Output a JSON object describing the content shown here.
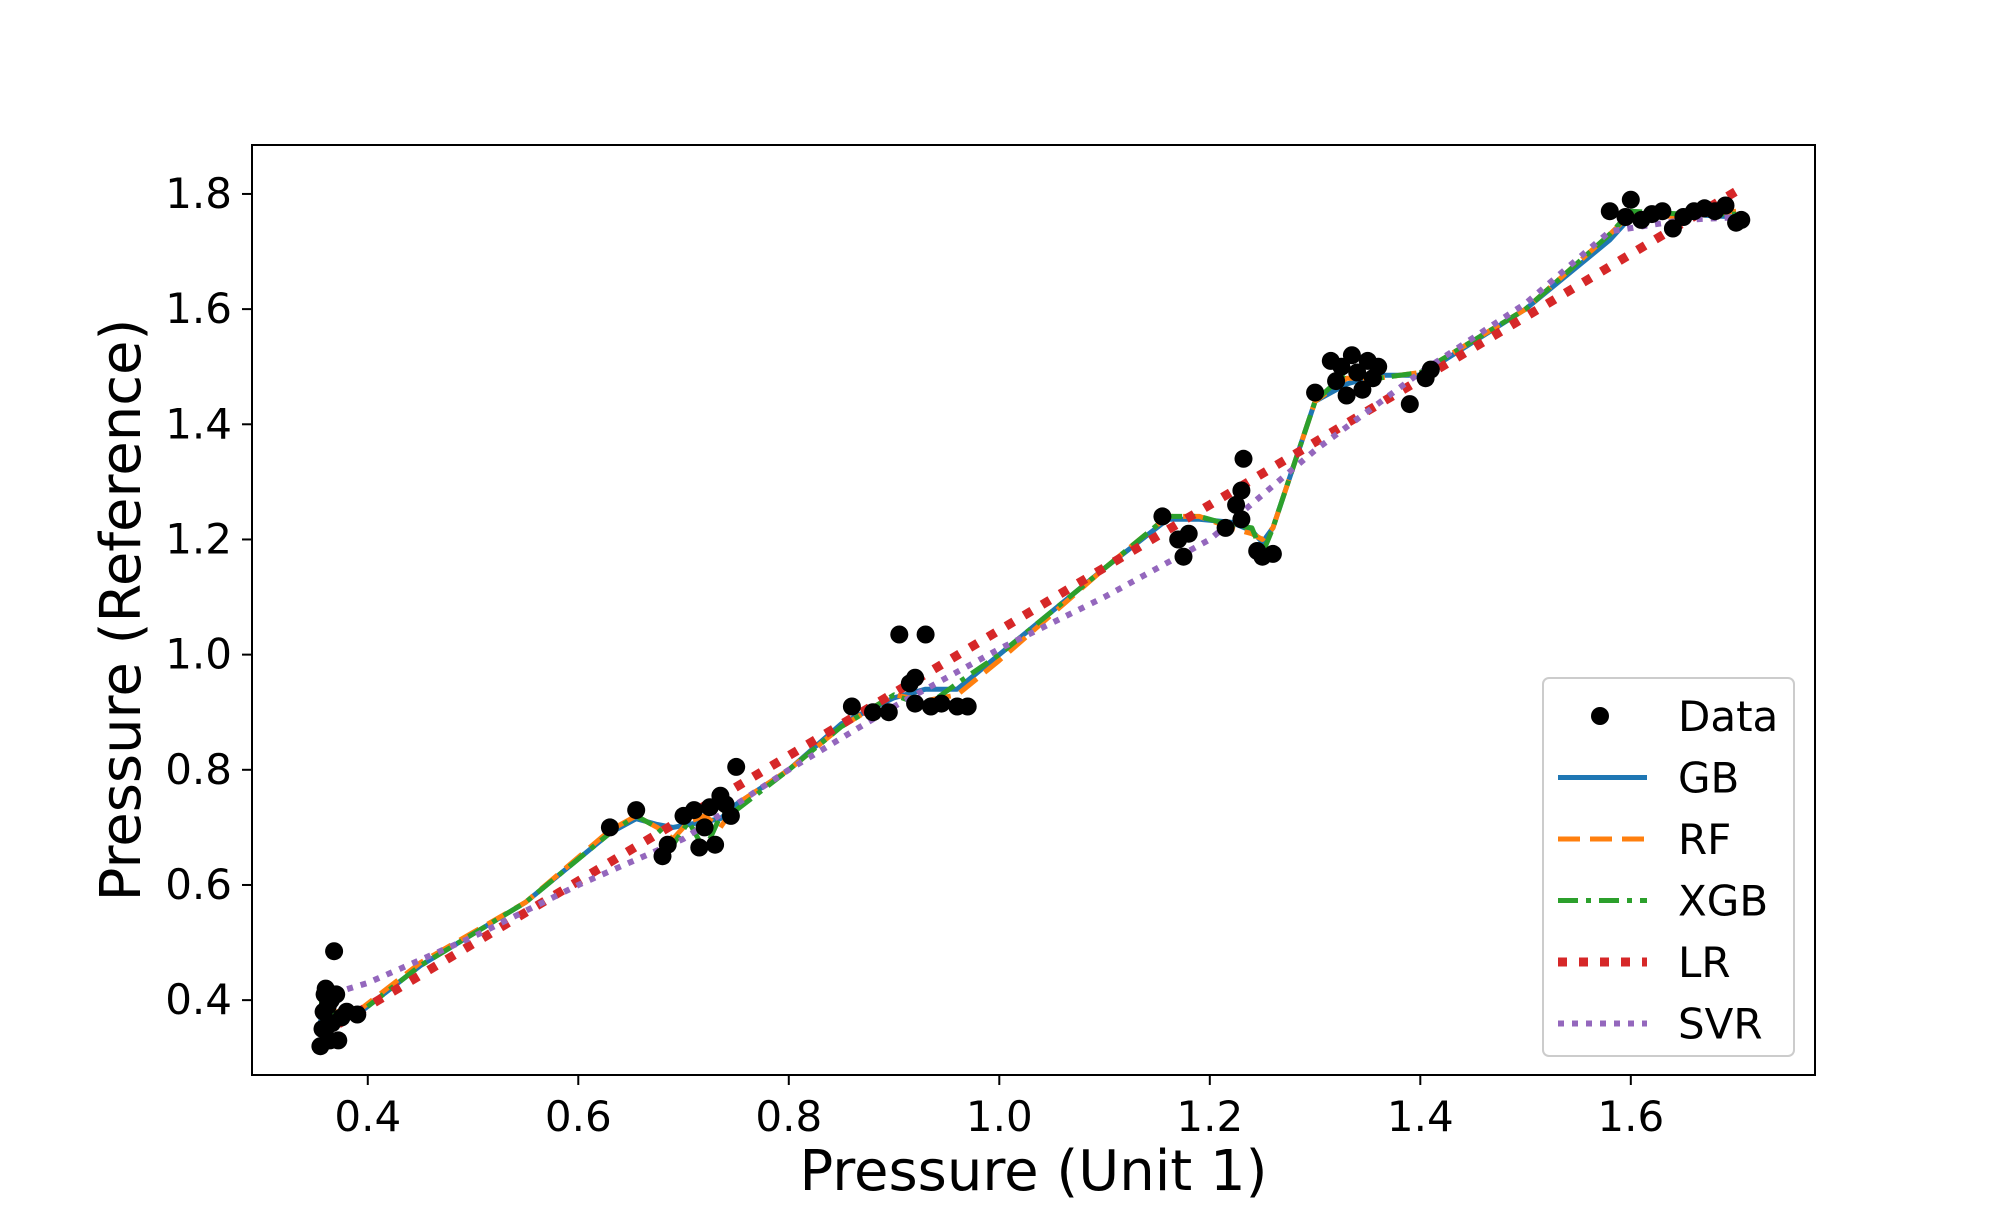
{
  "chart_data": {
    "type": "line",
    "title": "",
    "xlabel": "Pressure (Unit 1)",
    "ylabel": "Pressure (Reference)",
    "xlim": [
      0.29,
      1.775
    ],
    "ylim": [
      0.27,
      1.885
    ],
    "xticks": [
      0.4,
      0.6,
      0.8,
      1.0,
      1.2,
      1.4,
      1.6
    ],
    "xtick_labels": [
      "0.4",
      "0.6",
      "0.8",
      "1.0",
      "1.2",
      "1.4",
      "1.6"
    ],
    "yticks": [
      0.4,
      0.6,
      0.8,
      1.0,
      1.2,
      1.4,
      1.6,
      1.8
    ],
    "ytick_labels": [
      "0.4",
      "0.6",
      "0.8",
      "1.0",
      "1.2",
      "1.4",
      "1.6",
      "1.8"
    ],
    "grid": false,
    "legend_position": "lower-right",
    "legend_order": [
      "Data",
      "GB",
      "RF",
      "XGB",
      "LR",
      "SVR"
    ],
    "scatter": {
      "name": "Data",
      "color": "#000000",
      "points": [
        [
          0.355,
          0.32
        ],
        [
          0.357,
          0.35
        ],
        [
          0.358,
          0.38
        ],
        [
          0.359,
          0.41
        ],
        [
          0.36,
          0.42
        ],
        [
          0.362,
          0.39
        ],
        [
          0.364,
          0.33
        ],
        [
          0.366,
          0.36
        ],
        [
          0.368,
          0.485
        ],
        [
          0.37,
          0.41
        ],
        [
          0.372,
          0.33
        ],
        [
          0.375,
          0.37
        ],
        [
          0.38,
          0.38
        ],
        [
          0.39,
          0.375
        ],
        [
          0.365,
          0.4
        ],
        [
          0.63,
          0.7
        ],
        [
          0.655,
          0.73
        ],
        [
          0.68,
          0.65
        ],
        [
          0.685,
          0.67
        ],
        [
          0.7,
          0.72
        ],
        [
          0.71,
          0.73
        ],
        [
          0.715,
          0.665
        ],
        [
          0.72,
          0.7
        ],
        [
          0.73,
          0.67
        ],
        [
          0.735,
          0.755
        ],
        [
          0.74,
          0.74
        ],
        [
          0.745,
          0.72
        ],
        [
          0.75,
          0.805
        ],
        [
          0.725,
          0.735
        ],
        [
          0.86,
          0.91
        ],
        [
          0.88,
          0.9
        ],
        [
          0.895,
          0.9
        ],
        [
          0.905,
          1.035
        ],
        [
          0.915,
          0.95
        ],
        [
          0.92,
          0.96
        ],
        [
          0.93,
          1.035
        ],
        [
          0.935,
          0.91
        ],
        [
          0.945,
          0.915
        ],
        [
          0.96,
          0.91
        ],
        [
          0.97,
          0.91
        ],
        [
          0.92,
          0.915
        ],
        [
          1.155,
          1.24
        ],
        [
          1.17,
          1.2
        ],
        [
          1.175,
          1.17
        ],
        [
          1.18,
          1.21
        ],
        [
          1.215,
          1.22
        ],
        [
          1.225,
          1.26
        ],
        [
          1.23,
          1.235
        ],
        [
          1.23,
          1.285
        ],
        [
          1.232,
          1.34
        ],
        [
          1.245,
          1.18
        ],
        [
          1.25,
          1.17
        ],
        [
          1.26,
          1.175
        ],
        [
          1.3,
          1.455
        ],
        [
          1.315,
          1.51
        ],
        [
          1.32,
          1.475
        ],
        [
          1.325,
          1.5
        ],
        [
          1.33,
          1.45
        ],
        [
          1.335,
          1.52
        ],
        [
          1.34,
          1.49
        ],
        [
          1.345,
          1.46
        ],
        [
          1.35,
          1.51
        ],
        [
          1.355,
          1.48
        ],
        [
          1.36,
          1.5
        ],
        [
          1.39,
          1.435
        ],
        [
          1.405,
          1.48
        ],
        [
          1.41,
          1.495
        ],
        [
          1.58,
          1.77
        ],
        [
          1.595,
          1.76
        ],
        [
          1.6,
          1.79
        ],
        [
          1.61,
          1.755
        ],
        [
          1.62,
          1.765
        ],
        [
          1.63,
          1.77
        ],
        [
          1.64,
          1.74
        ],
        [
          1.65,
          1.76
        ],
        [
          1.66,
          1.77
        ],
        [
          1.67,
          1.775
        ],
        [
          1.68,
          1.77
        ],
        [
          1.69,
          1.78
        ],
        [
          1.7,
          1.75
        ],
        [
          1.705,
          1.755
        ]
      ]
    },
    "series": [
      {
        "name": "GB",
        "color": "#1f77b4",
        "style": "solid",
        "points": [
          [
            0.355,
            0.36
          ],
          [
            0.358,
            0.41
          ],
          [
            0.362,
            0.38
          ],
          [
            0.37,
            0.375
          ],
          [
            0.39,
            0.375
          ],
          [
            0.45,
            0.46
          ],
          [
            0.55,
            0.57
          ],
          [
            0.63,
            0.69
          ],
          [
            0.655,
            0.715
          ],
          [
            0.675,
            0.705
          ],
          [
            0.69,
            0.7
          ],
          [
            0.705,
            0.705
          ],
          [
            0.72,
            0.71
          ],
          [
            0.735,
            0.715
          ],
          [
            0.75,
            0.74
          ],
          [
            0.8,
            0.8
          ],
          [
            0.85,
            0.88
          ],
          [
            0.9,
            0.925
          ],
          [
            0.93,
            0.94
          ],
          [
            0.96,
            0.94
          ],
          [
            1.0,
            1.0
          ],
          [
            1.1,
            1.15
          ],
          [
            1.16,
            1.235
          ],
          [
            1.19,
            1.235
          ],
          [
            1.22,
            1.23
          ],
          [
            1.24,
            1.215
          ],
          [
            1.25,
            1.195
          ],
          [
            1.26,
            1.22
          ],
          [
            1.3,
            1.44
          ],
          [
            1.33,
            1.47
          ],
          [
            1.36,
            1.485
          ],
          [
            1.4,
            1.485
          ],
          [
            1.5,
            1.6
          ],
          [
            1.58,
            1.72
          ],
          [
            1.6,
            1.76
          ],
          [
            1.65,
            1.765
          ],
          [
            1.7,
            1.76
          ]
        ]
      },
      {
        "name": "RF",
        "color": "#ff7f0e",
        "style": "dashed",
        "points": [
          [
            0.355,
            0.37
          ],
          [
            0.358,
            0.4
          ],
          [
            0.362,
            0.37
          ],
          [
            0.37,
            0.38
          ],
          [
            0.39,
            0.38
          ],
          [
            0.45,
            0.465
          ],
          [
            0.55,
            0.57
          ],
          [
            0.63,
            0.695
          ],
          [
            0.655,
            0.72
          ],
          [
            0.675,
            0.7
          ],
          [
            0.69,
            0.68
          ],
          [
            0.705,
            0.71
          ],
          [
            0.72,
            0.72
          ],
          [
            0.735,
            0.7
          ],
          [
            0.75,
            0.74
          ],
          [
            0.8,
            0.8
          ],
          [
            0.85,
            0.875
          ],
          [
            0.9,
            0.93
          ],
          [
            0.93,
            0.92
          ],
          [
            0.96,
            0.93
          ],
          [
            1.0,
            0.99
          ],
          [
            1.1,
            1.15
          ],
          [
            1.16,
            1.24
          ],
          [
            1.19,
            1.24
          ],
          [
            1.22,
            1.22
          ],
          [
            1.24,
            1.21
          ],
          [
            1.25,
            1.2
          ],
          [
            1.26,
            1.22
          ],
          [
            1.3,
            1.44
          ],
          [
            1.33,
            1.48
          ],
          [
            1.36,
            1.48
          ],
          [
            1.4,
            1.49
          ],
          [
            1.5,
            1.6
          ],
          [
            1.58,
            1.73
          ],
          [
            1.6,
            1.765
          ],
          [
            1.65,
            1.76
          ],
          [
            1.7,
            1.77
          ]
        ]
      },
      {
        "name": "XGB",
        "color": "#2ca02c",
        "style": "dashdot",
        "points": [
          [
            0.355,
            0.42
          ],
          [
            0.358,
            0.35
          ],
          [
            0.362,
            0.4
          ],
          [
            0.37,
            0.37
          ],
          [
            0.39,
            0.375
          ],
          [
            0.45,
            0.46
          ],
          [
            0.55,
            0.57
          ],
          [
            0.63,
            0.69
          ],
          [
            0.655,
            0.72
          ],
          [
            0.675,
            0.7
          ],
          [
            0.69,
            0.67
          ],
          [
            0.705,
            0.71
          ],
          [
            0.72,
            0.66
          ],
          [
            0.735,
            0.72
          ],
          [
            0.75,
            0.73
          ],
          [
            0.8,
            0.8
          ],
          [
            0.85,
            0.875
          ],
          [
            0.9,
            0.93
          ],
          [
            0.93,
            0.91
          ],
          [
            0.96,
            0.95
          ],
          [
            1.0,
            1.0
          ],
          [
            1.1,
            1.15
          ],
          [
            1.16,
            1.24
          ],
          [
            1.19,
            1.24
          ],
          [
            1.22,
            1.225
          ],
          [
            1.24,
            1.22
          ],
          [
            1.25,
            1.175
          ],
          [
            1.26,
            1.22
          ],
          [
            1.3,
            1.44
          ],
          [
            1.33,
            1.49
          ],
          [
            1.36,
            1.48
          ],
          [
            1.4,
            1.49
          ],
          [
            1.5,
            1.6
          ],
          [
            1.58,
            1.73
          ],
          [
            1.6,
            1.77
          ],
          [
            1.65,
            1.765
          ],
          [
            1.7,
            1.765
          ]
        ]
      },
      {
        "name": "LR",
        "color": "#d62728",
        "style": "dotted-heavy",
        "points": [
          [
            0.355,
            0.34
          ],
          [
            1.705,
            1.81
          ]
        ]
      },
      {
        "name": "SVR",
        "color": "#9467bd",
        "style": "dotted",
        "points": [
          [
            0.355,
            0.405
          ],
          [
            0.4,
            0.43
          ],
          [
            0.5,
            0.51
          ],
          [
            0.6,
            0.6
          ],
          [
            0.7,
            0.68
          ],
          [
            0.8,
            0.8
          ],
          [
            0.9,
            0.91
          ],
          [
            1.0,
            1.01
          ],
          [
            1.1,
            1.1
          ],
          [
            1.2,
            1.2
          ],
          [
            1.3,
            1.355
          ],
          [
            1.4,
            1.49
          ],
          [
            1.5,
            1.61
          ],
          [
            1.58,
            1.735
          ],
          [
            1.65,
            1.755
          ],
          [
            1.705,
            1.76
          ]
        ]
      }
    ]
  }
}
